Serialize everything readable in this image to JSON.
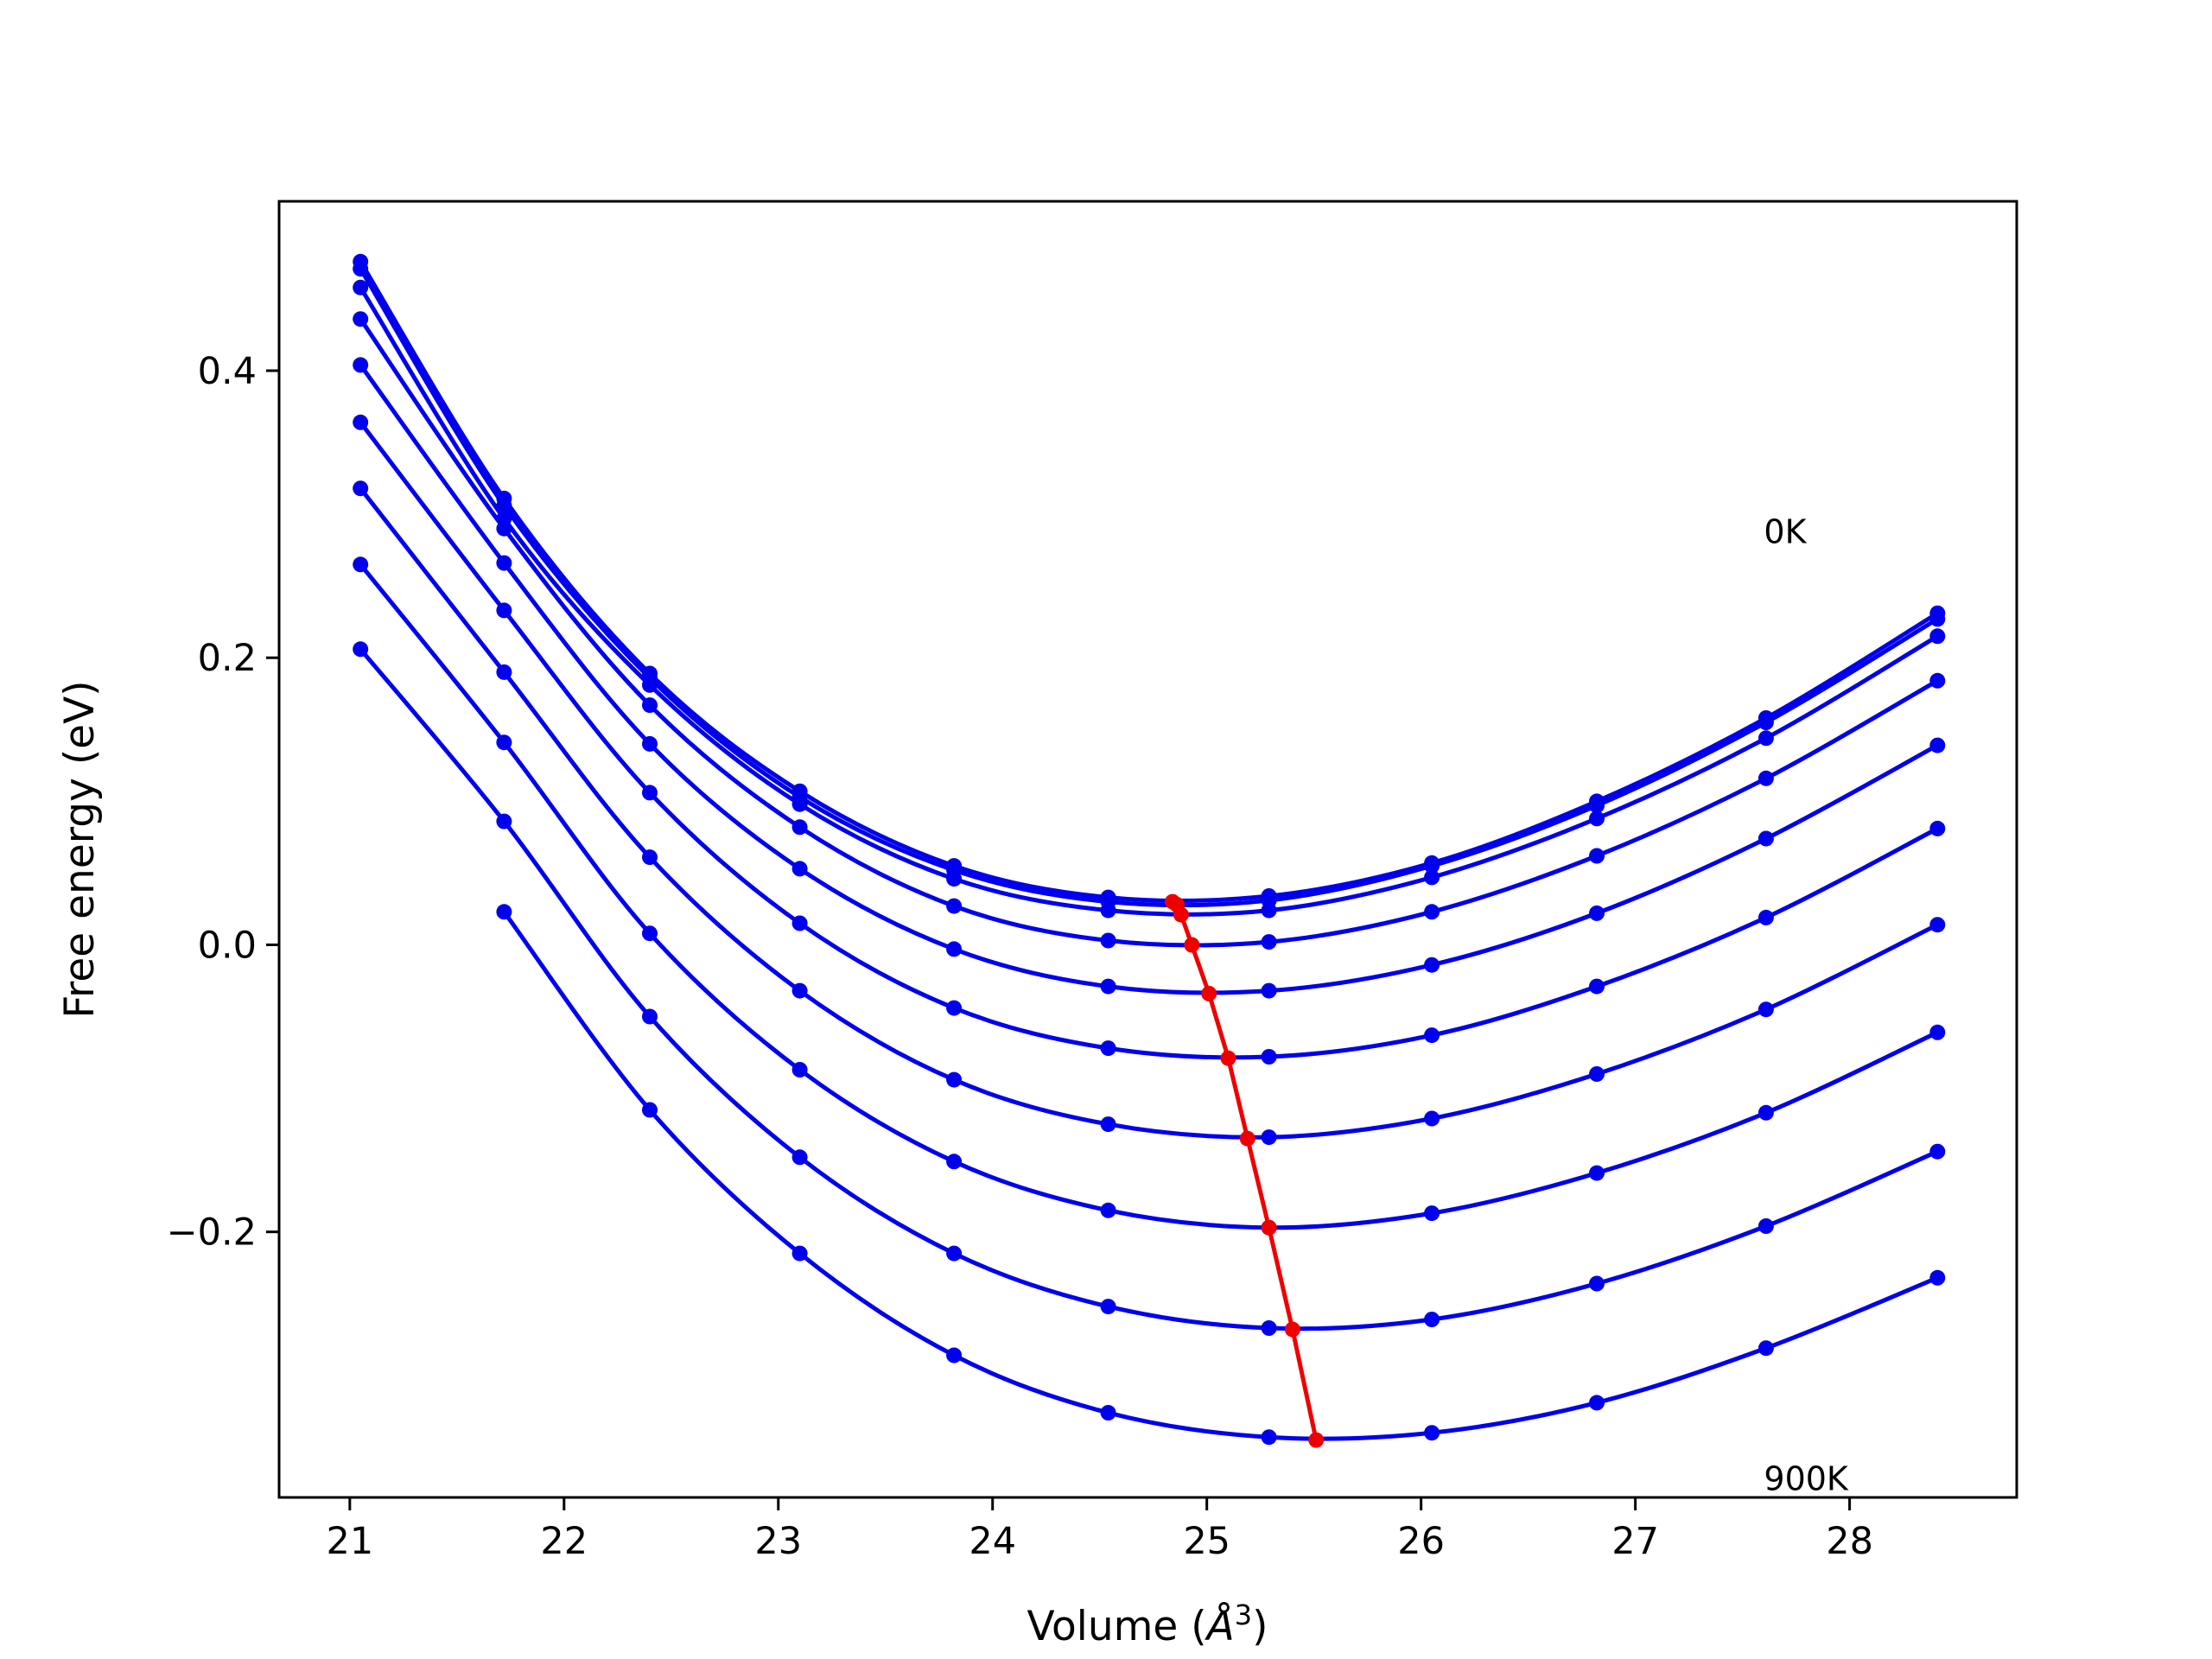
{
  "chart_data": {
    "type": "line",
    "xlabel": "Volume (",
    "xlabel_unit": "Å",
    "xlabel_exp": "3",
    "xlabel_close": ")",
    "ylabel": "Free energy (eV)",
    "xlim": [
      20.67,
      28.78
    ],
    "ylim": [
      -0.385,
      0.518
    ],
    "x_ticks": [
      21,
      22,
      23,
      24,
      25,
      26,
      27,
      28
    ],
    "y_ticks": [
      0.4,
      0.2,
      0.0,
      -0.2
    ],
    "y_tick_labels": [
      "0.4",
      "0.2",
      "0.0",
      "−0.2"
    ],
    "x_points": [
      21.05,
      21.72,
      22.4,
      23.1,
      23.82,
      24.54,
      25.29,
      26.05,
      26.82,
      27.61,
      28.41
    ],
    "curve_color": "#0000ee",
    "min_color": "#ee0000",
    "annotations": [
      {
        "text": "0K",
        "x": 27.6,
        "y": 0.28
      },
      {
        "text": "900K",
        "x": 27.6,
        "y": -0.38
      }
    ],
    "series": [
      {
        "values": [
          0.476,
          0.311,
          0.189,
          0.107,
          0.055,
          0.033,
          0.034,
          0.057,
          0.1,
          0.158,
          0.231
        ],
        "min": [
          24.84,
          0.03
        ]
      },
      {
        "values": [
          0.471,
          0.306,
          0.186,
          0.103,
          0.052,
          0.03,
          0.031,
          0.055,
          0.097,
          0.155,
          0.227
        ],
        "min": [
          24.86,
          0.028
        ]
      },
      {
        "values": [
          0.458,
          0.297,
          0.181,
          0.098,
          0.046,
          0.024,
          0.024,
          0.047,
          0.088,
          0.144,
          0.215
        ],
        "min": [
          24.88,
          0.021
        ]
      },
      {
        "values": [
          0.436,
          0.29,
          0.167,
          0.082,
          0.027,
          0.003,
          0.002,
          0.023,
          0.062,
          0.116,
          0.184
        ],
        "min": [
          24.93,
          0.0
        ]
      },
      {
        "values": [
          0.404,
          0.266,
          0.14,
          0.053,
          -0.003,
          -0.029,
          -0.032,
          -0.014,
          0.022,
          0.074,
          0.139
        ],
        "min": [
          25.01,
          -0.034
        ]
      },
      {
        "values": [
          0.364,
          0.233,
          0.106,
          0.015,
          -0.044,
          -0.072,
          -0.078,
          -0.063,
          -0.029,
          0.019,
          0.081
        ],
        "min": [
          25.1,
          -0.079
        ]
      },
      {
        "values": [
          0.318,
          0.19,
          0.061,
          -0.032,
          -0.094,
          -0.125,
          -0.134,
          -0.121,
          -0.09,
          -0.045,
          0.014
        ],
        "min": [
          25.19,
          -0.135
        ]
      },
      {
        "values": [
          0.265,
          0.141,
          0.008,
          -0.087,
          -0.151,
          -0.185,
          -0.197,
          -0.187,
          -0.159,
          -0.117,
          -0.061
        ],
        "min": [
          25.29,
          -0.197
        ]
      },
      {
        "values": [
          0.206,
          0.086,
          -0.05,
          -0.148,
          -0.215,
          -0.252,
          -0.267,
          -0.261,
          -0.236,
          -0.196,
          -0.144
        ],
        "min": [
          25.4,
          -0.268
        ]
      },
      {
        "values": [
          null,
          0.023,
          -0.115,
          -0.215,
          -0.286,
          -0.326,
          -0.343,
          -0.34,
          -0.319,
          -0.281,
          -0.232
        ],
        "min": [
          25.51,
          -0.345
        ]
      }
    ]
  }
}
